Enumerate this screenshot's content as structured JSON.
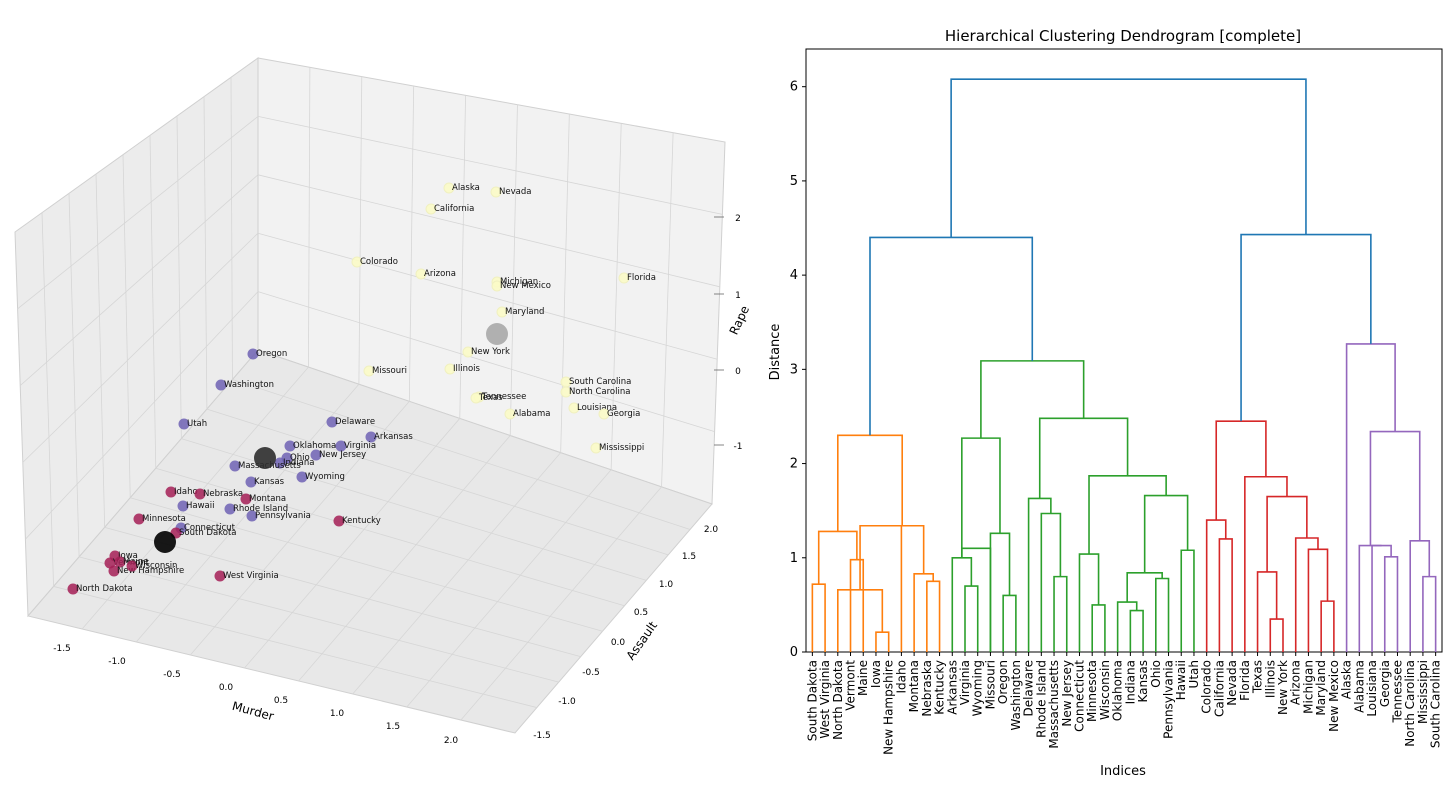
{
  "chart_data": [
    {
      "type": "scatter3d",
      "xlabel": "Murder",
      "ylabel": "Assault",
      "zlabel": "Rape",
      "xlim": [
        -1.8,
        2.4
      ],
      "ylim": [
        -1.7,
        2.2
      ],
      "zlim": [
        -1.6,
        2.6
      ],
      "x_ticks": [
        "-1.5",
        "-1.0",
        "-0.5",
        "0.0",
        "0.5",
        "1.0",
        "1.5",
        "2.0"
      ],
      "y_ticks": [
        "-1.5",
        "-1.0",
        "-0.5",
        "0.0",
        "0.5",
        "1.0",
        "1.5",
        "2.0"
      ],
      "z_ticks": [
        "-1",
        "0",
        "1",
        "2"
      ],
      "grid": true,
      "cluster_colors": [
        "#a51e56",
        "#6f61b4",
        "#fbfbc6"
      ],
      "centroid_colors": [
        "#000000",
        "#2e2e2e",
        "#9a9a9a"
      ],
      "points": [
        {
          "label": "Alaska",
          "cluster": 2
        },
        {
          "label": "Nevada",
          "cluster": 2
        },
        {
          "label": "California",
          "cluster": 2
        },
        {
          "label": "Colorado",
          "cluster": 2
        },
        {
          "label": "Arizona",
          "cluster": 2
        },
        {
          "label": "Michigan",
          "cluster": 2
        },
        {
          "label": "New Mexico",
          "cluster": 2
        },
        {
          "label": "Florida",
          "cluster": 2
        },
        {
          "label": "Maryland",
          "cluster": 2
        },
        {
          "label": "New York",
          "cluster": 2
        },
        {
          "label": "Missouri",
          "cluster": 2
        },
        {
          "label": "Illinois",
          "cluster": 2
        },
        {
          "label": "South Carolina",
          "cluster": 2
        },
        {
          "label": "North Carolina",
          "cluster": 2
        },
        {
          "label": "Tennessee",
          "cluster": 2
        },
        {
          "label": "Texas",
          "cluster": 2
        },
        {
          "label": "Alabama",
          "cluster": 2
        },
        {
          "label": "Louisiana",
          "cluster": 2
        },
        {
          "label": "Georgia",
          "cluster": 2
        },
        {
          "label": "Mississippi",
          "cluster": 2
        },
        {
          "label": "Oregon",
          "cluster": 1
        },
        {
          "label": "Washington",
          "cluster": 1
        },
        {
          "label": "Utah",
          "cluster": 1
        },
        {
          "label": "Delaware",
          "cluster": 1
        },
        {
          "label": "Arkansas",
          "cluster": 1
        },
        {
          "label": "Oklahoma",
          "cluster": 1
        },
        {
          "label": "Virginia",
          "cluster": 1
        },
        {
          "label": "Ohio",
          "cluster": 1
        },
        {
          "label": "New Jersey",
          "cluster": 1
        },
        {
          "label": "Indiana",
          "cluster": 1
        },
        {
          "label": "Massachusetts",
          "cluster": 1
        },
        {
          "label": "Kansas",
          "cluster": 1
        },
        {
          "label": "Wyoming",
          "cluster": 1
        },
        {
          "label": "Hawaii",
          "cluster": 1
        },
        {
          "label": "Rhode Island",
          "cluster": 1
        },
        {
          "label": "Pennsylvania",
          "cluster": 1
        },
        {
          "label": "Connecticut",
          "cluster": 1
        },
        {
          "label": "Idaho",
          "cluster": 0
        },
        {
          "label": "Nebraska",
          "cluster": 0
        },
        {
          "label": "Montana",
          "cluster": 0
        },
        {
          "label": "Kentucky",
          "cluster": 0
        },
        {
          "label": "Minnesota",
          "cluster": 0
        },
        {
          "label": "South Dakota",
          "cluster": 0
        },
        {
          "label": "Iowa",
          "cluster": 0
        },
        {
          "label": "Vermont",
          "cluster": 0
        },
        {
          "label": "Maine",
          "cluster": 0
        },
        {
          "label": "New Hampshire",
          "cluster": 0
        },
        {
          "label": "Wisconsin",
          "cluster": 0
        },
        {
          "label": "West Virginia",
          "cluster": 0
        },
        {
          "label": "North Dakota",
          "cluster": 0
        }
      ]
    },
    {
      "type": "dendrogram",
      "title": "Hierarchical Clustering Dendrogram [complete]",
      "xlabel": "Indices",
      "ylabel": "Distance",
      "ylim": [
        0,
        6.4
      ],
      "y_ticks": [
        0,
        1,
        2,
        3,
        4,
        5,
        6
      ],
      "leaves": [
        "South Dakota",
        "West Virginia",
        "North Dakota",
        "Vermont",
        "Maine",
        "Iowa",
        "New Hampshire",
        "Idaho",
        "Montana",
        "Nebraska",
        "Kentucky",
        "Arkansas",
        "Virginia",
        "Wyoming",
        "Missouri",
        "Oregon",
        "Washington",
        "Delaware",
        "Rhode Island",
        "Massachusetts",
        "New Jersey",
        "Connecticut",
        "Minnesota",
        "Wisconsin",
        "Oklahoma",
        "Indiana",
        "Kansas",
        "Ohio",
        "Pennsylvania",
        "Hawaii",
        "Utah",
        "Colorado",
        "California",
        "Nevada",
        "Florida",
        "Texas",
        "Illinois",
        "New York",
        "Arizona",
        "Michigan",
        "Maryland",
        "New Mexico",
        "Alaska",
        "Alabama",
        "Louisiana",
        "Georgia",
        "Tennessee",
        "North Carolina",
        "Mississippi",
        "South Carolina"
      ],
      "cluster_colors": [
        "#ff7f0e",
        "#2ca02c",
        "#d62728",
        "#9467bd",
        "#1f77b4"
      ],
      "links": [
        {
          "a": 0,
          "b": 1,
          "h": 0.72,
          "c": 0
        },
        {
          "a": 3,
          "b": 4,
          "h": 0.98,
          "c": 0
        },
        {
          "a": "L0",
          "b": "L1",
          "h": 1.28,
          "c": 0
        },
        {
          "a": 5,
          "b": 6,
          "h": 0.21,
          "c": 0
        },
        {
          "a": 2,
          "b": "L3",
          "h": 0.66,
          "c": 0
        },
        {
          "a": 9,
          "b": 10,
          "h": 0.75,
          "c": 0
        },
        {
          "a": 8,
          "b": "L5",
          "h": 0.83,
          "c": 0
        },
        {
          "a": "L4",
          "b": 7,
          "h": 1.34,
          "c": 0
        },
        {
          "a": "L7",
          "b": "L6",
          "h": 1.34,
          "c": 0
        },
        {
          "a": "L2",
          "b": "L8",
          "h": 2.3,
          "c": 0
        },
        {
          "a": 12,
          "b": 13,
          "h": 0.7,
          "c": 1
        },
        {
          "a": 11,
          "b": "L10",
          "h": 1.0,
          "c": 1
        },
        {
          "a": "L11",
          "b": 14,
          "h": 1.1,
          "c": 1
        },
        {
          "a": 15,
          "b": 16,
          "h": 0.6,
          "c": 1
        },
        {
          "a": 14,
          "b": "L13",
          "h": 1.26,
          "c": 1
        },
        {
          "a": "L11",
          "b": "L14",
          "h": 2.27,
          "c": 1
        },
        {
          "a": 19,
          "b": 20,
          "h": 0.8,
          "c": 1
        },
        {
          "a": 18,
          "b": "L16",
          "h": 1.47,
          "c": 1
        },
        {
          "a": 17,
          "b": "L17",
          "h": 1.63,
          "c": 1
        },
        {
          "a": 22,
          "b": 23,
          "h": 0.5,
          "c": 1
        },
        {
          "a": 21,
          "b": "L19",
          "h": 1.04,
          "c": 1
        },
        {
          "a": 25,
          "b": 26,
          "h": 0.44,
          "c": 1
        },
        {
          "a": 24,
          "b": "L21",
          "h": 0.53,
          "c": 1
        },
        {
          "a": 27,
          "b": 28,
          "h": 0.78,
          "c": 1
        },
        {
          "a": "L22",
          "b": "L23",
          "h": 0.84,
          "c": 1
        },
        {
          "a": 29,
          "b": 30,
          "h": 1.08,
          "c": 1
        },
        {
          "a": "L24",
          "b": "L25",
          "h": 1.66,
          "c": 1
        },
        {
          "a": "L20",
          "b": "L26",
          "h": 1.87,
          "c": 1
        },
        {
          "a": "L18",
          "b": "L27",
          "h": 2.48,
          "c": 1
        },
        {
          "a": "L15",
          "b": "L28",
          "h": 3.09,
          "c": 1
        },
        {
          "a": 32,
          "b": 33,
          "h": 1.2,
          "c": 2
        },
        {
          "a": 31,
          "b": "L30",
          "h": 1.4,
          "c": 2
        },
        {
          "a": 36,
          "b": 37,
          "h": 0.35,
          "c": 2
        },
        {
          "a": 35,
          "b": "L32",
          "h": 0.85,
          "c": 2
        },
        {
          "a": 40,
          "b": 41,
          "h": 0.54,
          "c": 2
        },
        {
          "a": 39,
          "b": "L34",
          "h": 1.09,
          "c": 2
        },
        {
          "a": 38,
          "b": "L35",
          "h": 1.21,
          "c": 2
        },
        {
          "a": "L33",
          "b": "L36",
          "h": 1.65,
          "c": 2
        },
        {
          "a": 34,
          "b": "L37",
          "h": 1.86,
          "c": 2
        },
        {
          "a": "L31",
          "b": "L38",
          "h": 2.45,
          "c": 2
        },
        {
          "a": 45,
          "b": 46,
          "h": 1.01,
          "c": 3
        },
        {
          "a": 44,
          "b": "L40",
          "h": 1.13,
          "c": 3
        },
        {
          "a": 43,
          "b": "L41",
          "h": 1.13,
          "c": 3
        },
        {
          "a": 48,
          "b": 49,
          "h": 0.8,
          "c": 3
        },
        {
          "a": 47,
          "b": "L43",
          "h": 1.18,
          "c": 3
        },
        {
          "a": "L42",
          "b": "L44",
          "h": 2.34,
          "c": 3
        },
        {
          "a": 42,
          "b": "L45",
          "h": 3.27,
          "c": 3
        },
        {
          "a": "L9",
          "b": "L29",
          "h": 4.4,
          "c": 4
        },
        {
          "a": "L39",
          "b": "L46",
          "h": 4.43,
          "c": 4
        },
        {
          "a": "L47",
          "b": "L48",
          "h": 6.08,
          "c": 4
        }
      ]
    }
  ]
}
